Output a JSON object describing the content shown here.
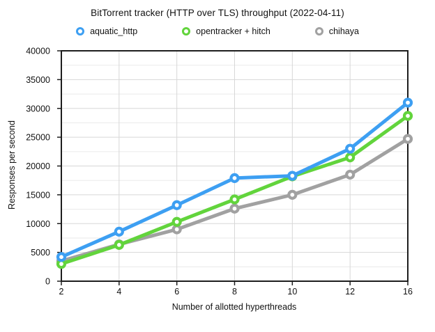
{
  "chart_data": {
    "type": "line",
    "title": "BitTorrent tracker (HTTP over TLS) throughput (2022-04-11)",
    "xlabel": "Number of allotted hyperthreads",
    "ylabel": "Responses per second",
    "categories": [
      2,
      4,
      6,
      8,
      10,
      12,
      16
    ],
    "series": [
      {
        "name": "aquatic_http",
        "color": "#3d9ff2",
        "values": [
          4200,
          8600,
          13200,
          17900,
          18300,
          23000,
          31000
        ]
      },
      {
        "name": "opentracker + hitch",
        "color": "#62d43c",
        "values": [
          3000,
          6300,
          10300,
          14200,
          18200,
          21500,
          28700
        ]
      },
      {
        "name": "chihaya",
        "color": "#a1a1a1",
        "values": [
          3500,
          6400,
          9000,
          12600,
          15000,
          18500,
          24700
        ]
      }
    ],
    "ylim": [
      0,
      40000
    ],
    "y_major_step": 5000,
    "y_minor_step": 2500,
    "legend_position": "top",
    "grid": true,
    "colors": {
      "grid_major": "#d7d7d7",
      "grid_minor": "#eaeaea",
      "axis_border": "#1d1d1d",
      "background": "#ffffff"
    }
  }
}
